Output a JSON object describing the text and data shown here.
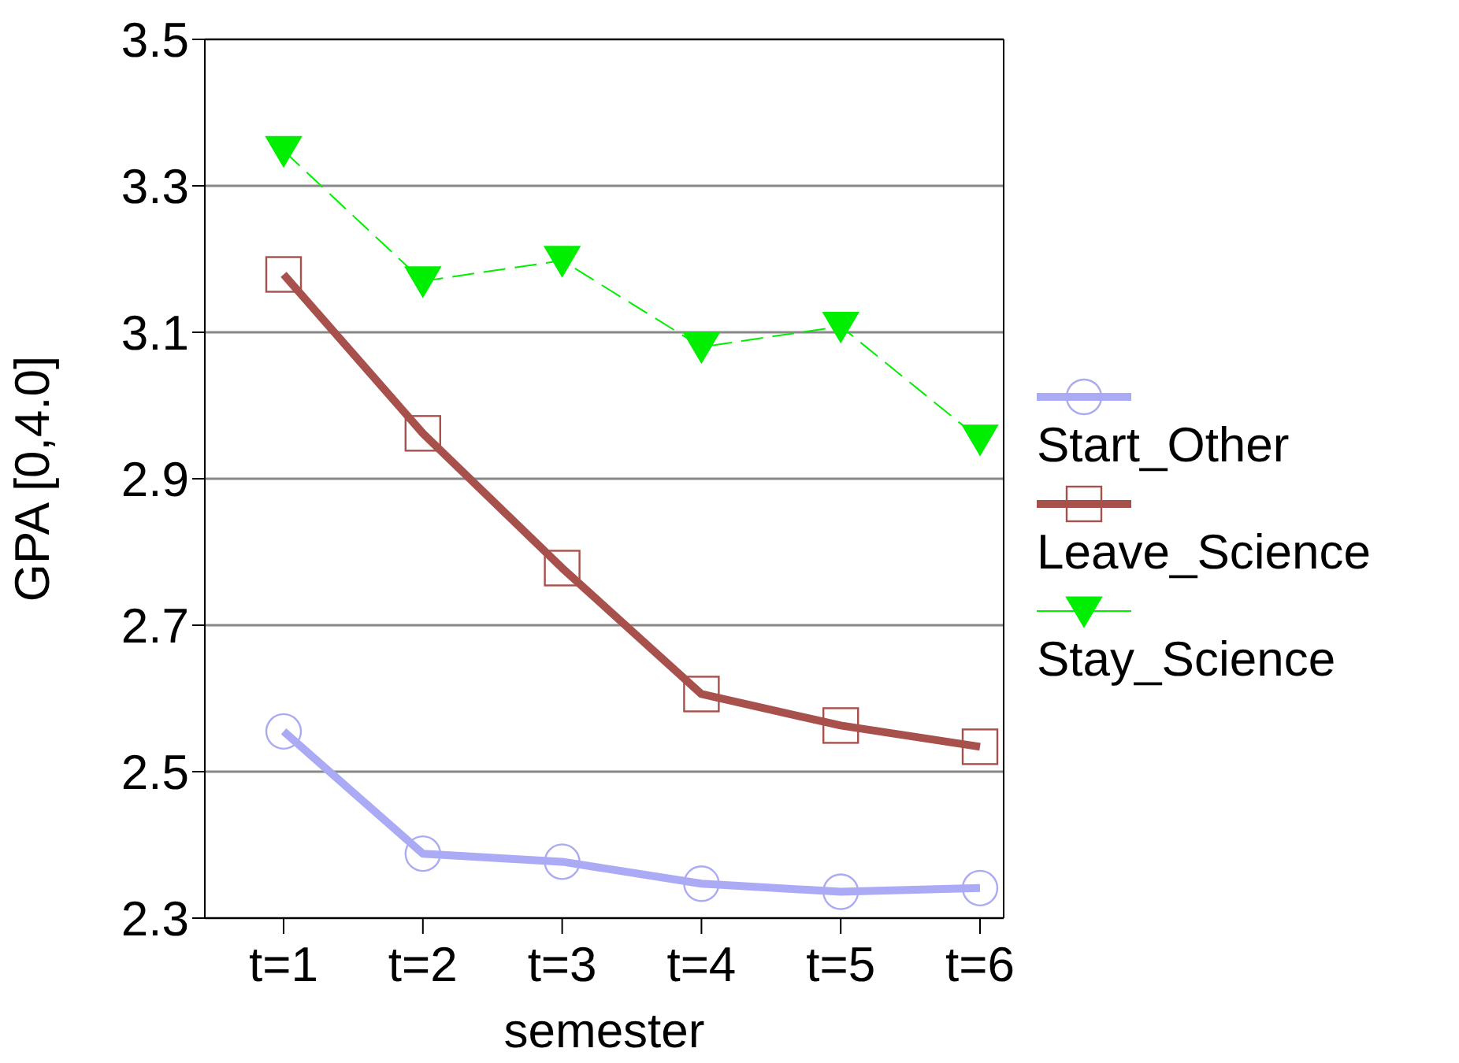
{
  "chart_data": {
    "type": "line",
    "xlabel": "semester",
    "ylabel": "GPA  [0,4.0]",
    "categories": [
      "t=1",
      "t=2",
      "t=3",
      "t=4",
      "t=5",
      "t=6"
    ],
    "series": [
      {
        "name": "Start_Other",
        "color": "#aaaaf5",
        "values": [
          2.555,
          2.388,
          2.377,
          2.347,
          2.336,
          2.341
        ],
        "marker": "circle",
        "line_style": "solid"
      },
      {
        "name": "Leave_Science",
        "color": "#a8504c",
        "values": [
          3.179,
          2.962,
          2.778,
          2.606,
          2.563,
          2.534
        ],
        "marker": "square",
        "line_style": "solid"
      },
      {
        "name": "Stay_Science",
        "color": "#00ee00",
        "values": [
          3.348,
          3.17,
          3.198,
          3.08,
          3.108,
          2.954
        ],
        "marker": "triangle",
        "line_style": "dashed"
      }
    ],
    "ylim": [
      2.3,
      3.5
    ],
    "yticks": [
      2.3,
      2.5,
      2.7,
      2.9,
      3.1,
      3.3,
      3.5
    ],
    "grid": "y",
    "legend": "right"
  }
}
